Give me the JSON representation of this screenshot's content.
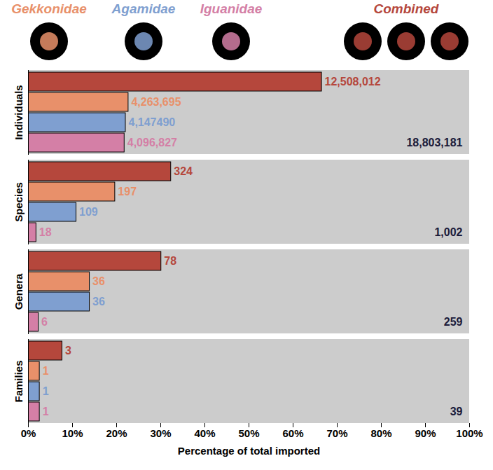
{
  "chart_data": {
    "type": "bar",
    "orientation": "horizontal",
    "xlabel": "Percentage of total imported",
    "categories": [
      "Individuals",
      "Species",
      "Genera",
      "Families"
    ],
    "series": [
      {
        "name": "Combined",
        "color": "#b5473c",
        "values": [
          66.52,
          32.34,
          30.12,
          7.69
        ],
        "count_labels": [
          "12,508,012",
          "324",
          "78",
          "3"
        ]
      },
      {
        "name": "Gekkonidae",
        "color": "#e8906a",
        "values": [
          22.68,
          19.66,
          13.9,
          2.56
        ],
        "count_labels": [
          "4,263,695",
          "197",
          "36",
          "1"
        ]
      },
      {
        "name": "Agamidae",
        "color": "#7f9fd0",
        "values": [
          22.06,
          10.88,
          13.9,
          2.56
        ],
        "count_labels": [
          "4,147490",
          "109",
          "36",
          "1"
        ]
      },
      {
        "name": "Iguanidae",
        "color": "#d47fa6",
        "values": [
          21.79,
          1.8,
          2.32,
          2.56
        ],
        "count_labels": [
          "4,096,827",
          "18",
          "6",
          "1"
        ]
      }
    ],
    "total_labels": [
      "18,803,181",
      "1,002",
      "259",
      "39"
    ],
    "xlim": [
      0,
      100
    ],
    "xticks": [
      {
        "value": 0,
        "label": "0%"
      },
      {
        "value": 10,
        "label": "10%"
      },
      {
        "value": 20,
        "label": "20%"
      },
      {
        "value": 30,
        "label": "30%"
      },
      {
        "value": 40,
        "label": "40%"
      },
      {
        "value": 50,
        "label": "50%"
      },
      {
        "value": 60,
        "label": "60%"
      },
      {
        "value": 70,
        "label": "70%"
      },
      {
        "value": 80,
        "label": "80%"
      },
      {
        "value": 90,
        "label": "90%"
      },
      {
        "value": 100,
        "label": "100%"
      }
    ],
    "legend": "top",
    "grid": false
  }
}
